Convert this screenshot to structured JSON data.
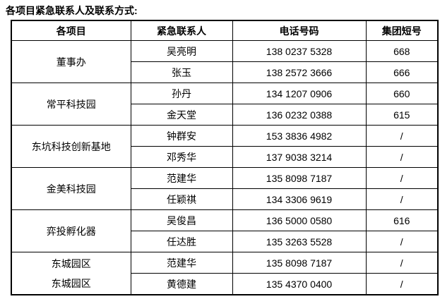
{
  "title": "各项目紧急联系人及联系方式:",
  "table": {
    "headers": [
      "各项目",
      "紧急联系人",
      "电话号码",
      "集团短号"
    ],
    "groups": [
      {
        "project": "董事办",
        "rows": [
          {
            "contact": "吴亮明",
            "phone": "138 0237 5328",
            "short": "668"
          },
          {
            "contact": "张玉",
            "phone": "138 2572 3666",
            "short": "666"
          }
        ]
      },
      {
        "project": "常平科技园",
        "rows": [
          {
            "contact": "孙丹",
            "phone": "134 1207 0906",
            "short": "660"
          },
          {
            "contact": "金天堂",
            "phone": "136 0232 0388",
            "short": "615"
          }
        ]
      },
      {
        "project": "东坑科技创新基地",
        "rows": [
          {
            "contact": "钟群安",
            "phone": "153 3836 4982",
            "short": "/"
          },
          {
            "contact": "邓秀华",
            "phone": "137 9038 3214",
            "short": "/"
          }
        ]
      },
      {
        "project": "金美科技园",
        "rows": [
          {
            "contact": "范建华",
            "phone": "135 8098 7187",
            "short": "/"
          },
          {
            "contact": "任颖祺",
            "phone": "134 3306 9619",
            "short": "/"
          }
        ]
      },
      {
        "project": "弈投孵化器",
        "rows": [
          {
            "contact": "吴俊昌",
            "phone": "136 5000 0580",
            "short": "616"
          },
          {
            "contact": "任达胜",
            "phone": "135 3263 5528",
            "short": "/"
          }
        ]
      },
      {
        "project_lines": [
          "东城园区",
          "东城园区"
        ],
        "rows": [
          {
            "contact": "范建华",
            "phone": "135 8098 7187",
            "short": "/"
          },
          {
            "contact": "黄德建",
            "phone": "135 4370 0400",
            "short": "/"
          }
        ]
      }
    ]
  }
}
